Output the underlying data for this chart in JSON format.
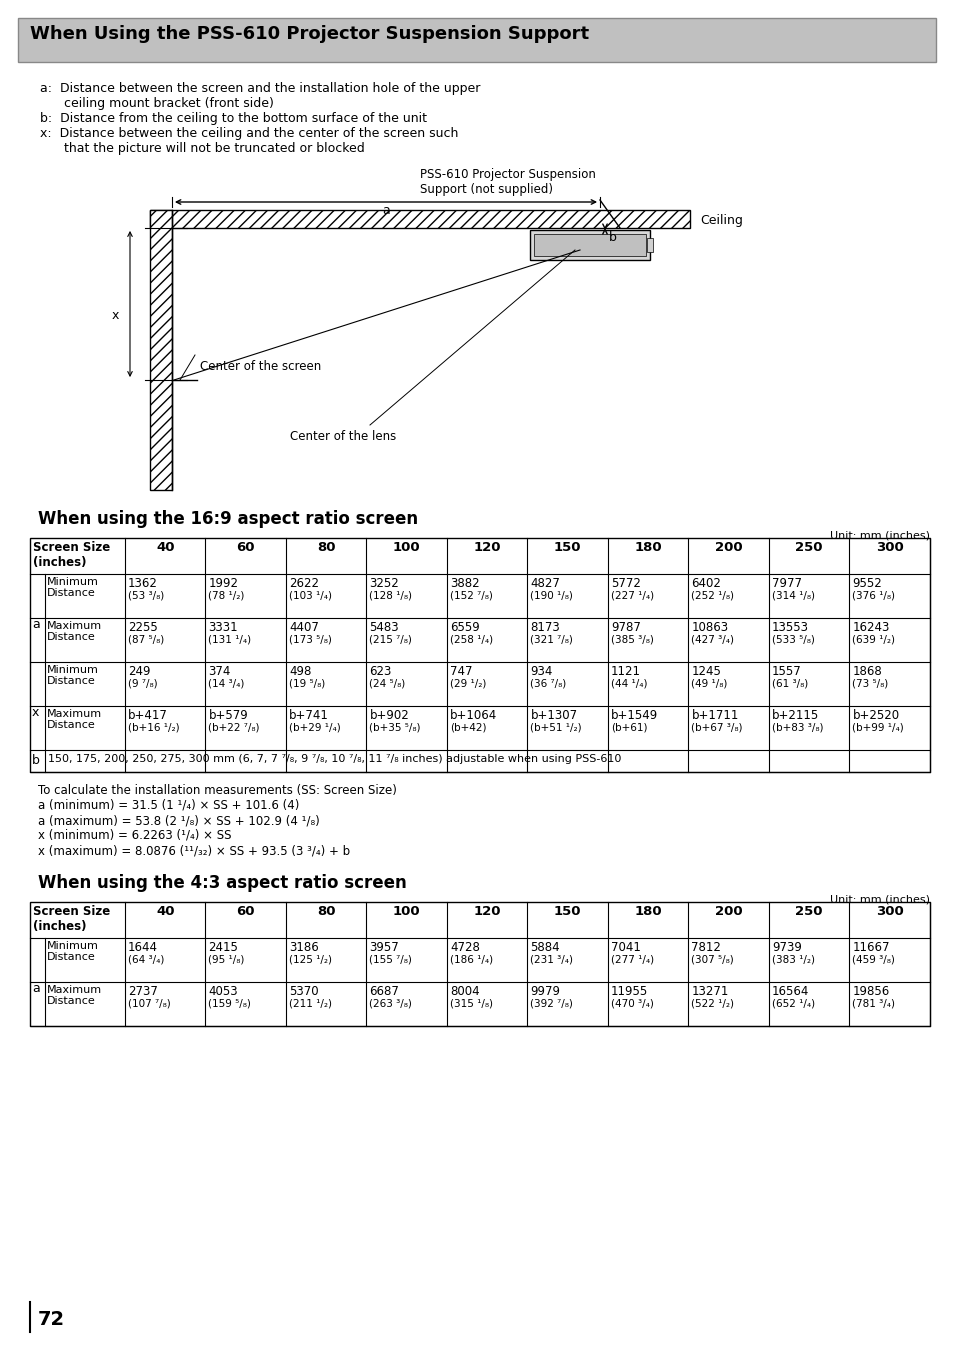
{
  "title": "When Using the PSS-610 Projector Suspension Support",
  "title_bg": "#c0c0c0",
  "page_bg": "#ffffff",
  "descriptions": [
    "a:  Distance between the screen and the installation hole of the upper",
    "      ceiling mount bracket (front side)",
    "b:  Distance from the ceiling to the bottom surface of the unit",
    "x:  Distance between the ceiling and the center of the screen such",
    "      that the picture will not be truncated or blocked"
  ],
  "pss_label_line1": "PSS-610 Projector Suspension",
  "pss_label_line2": "Support (not supplied)",
  "ceiling_label": "Ceiling",
  "center_screen_label": "Center of the screen",
  "center_lens_label": "Center of the lens",
  "section1_title": "When using the 16:9 aspect ratio screen",
  "section2_title": "When using the 4:3 aspect ratio screen",
  "unit_label": "Unit: mm (inches)",
  "screen_sizes": [
    "40",
    "60",
    "80",
    "100",
    "120",
    "150",
    "180",
    "200",
    "250",
    "300"
  ],
  "table169_data": [
    [
      "a",
      "Minimum\nDistance",
      "1362\n(53 ³/₈)",
      "1992\n(78 ¹/₂)",
      "2622\n(103 ¹/₄)",
      "3252\n(128 ¹/₈)",
      "3882\n(152 ⁷/₈)",
      "4827\n(190 ¹/₈)",
      "5772\n(227 ¹/₄)",
      "6402\n(252 ¹/₈)",
      "7977\n(314 ¹/₈)",
      "9552\n(376 ¹/₈)"
    ],
    [
      "",
      "Maximum\nDistance",
      "2255\n(87 ⁵/₈)",
      "3331\n(131 ¹/₄)",
      "4407\n(173 ⁵/₈)",
      "5483\n(215 ⁷/₈)",
      "6559\n(258 ¹/₄)",
      "8173\n(321 ⁷/₈)",
      "9787\n(385 ³/₈)",
      "10863\n(427 ³/₄)",
      "13553\n(533 ⁵/₈)",
      "16243\n(639 ¹/₂)"
    ],
    [
      "x",
      "Minimum\nDistance",
      "249\n(9 ⁷/₈)",
      "374\n(14 ³/₄)",
      "498\n(19 ⁵/₈)",
      "623\n(24 ⁵/₈)",
      "747\n(29 ¹/₂)",
      "934\n(36 ⁷/₈)",
      "1121\n(44 ¹/₄)",
      "1245\n(49 ¹/₈)",
      "1557\n(61 ³/₈)",
      "1868\n(73 ⁵/₈)"
    ],
    [
      "",
      "Maximum\nDistance",
      "b+417\n(b+16 ¹/₂)",
      "b+579\n(b+22 ⁷/₈)",
      "b+741\n(b+29 ¹/₄)",
      "b+902\n(b+35 ⁵/₈)",
      "b+1064\n(b+42)",
      "b+1307\n(b+51 ¹/₂)",
      "b+1549\n(b+61)",
      "b+1711\n(b+67 ³/₈)",
      "b+2115\n(b+83 ³/₈)",
      "b+2520\n(b+99 ¹/₄)"
    ]
  ],
  "table169_b_row": "150, 175, 200, 250, 275, 300 mm (6, 7, 7 ⁷/₈, 9 ⁷/₈, 10 ⁷/₈, 11 ⁷/₈ inches) adjustable when using PSS-610",
  "formulas": [
    "To calculate the installation measurements (SS: Screen Size)",
    "a (minimum) = 31.5 (1 ¹/₄) × SS + 101.6 (4)",
    "a (maximum) = 53.8 (2 ¹/₈) × SS + 102.9 (4 ¹/₈)",
    "x (minimum) = 6.2263 (¹/₄) × SS",
    "x (maximum) = 8.0876 (¹¹/₃₂) × SS + 93.5 (3 ³/₄) + b"
  ],
  "table43_data": [
    [
      "a",
      "Minimum\nDistance",
      "1644\n(64 ³/₄)",
      "2415\n(95 ¹/₈)",
      "3186\n(125 ¹/₂)",
      "3957\n(155 ⁷/₈)",
      "4728\n(186 ¹/₄)",
      "5884\n(231 ³/₄)",
      "7041\n(277 ¹/₄)",
      "7812\n(307 ⁵/₈)",
      "9739\n(383 ¹/₂)",
      "11667\n(459 ³/₈)"
    ],
    [
      "",
      "Maximum\nDistance",
      "2737\n(107 ⁷/₈)",
      "4053\n(159 ⁵/₈)",
      "5370\n(211 ¹/₂)",
      "6687\n(263 ³/₈)",
      "8004\n(315 ¹/₈)",
      "9979\n(392 ⁷/₈)",
      "11955\n(470 ³/₄)",
      "13271\n(522 ¹/₂)",
      "16564\n(652 ¹/₄)",
      "19856\n(781 ³/₄)"
    ]
  ],
  "page_number": "72"
}
